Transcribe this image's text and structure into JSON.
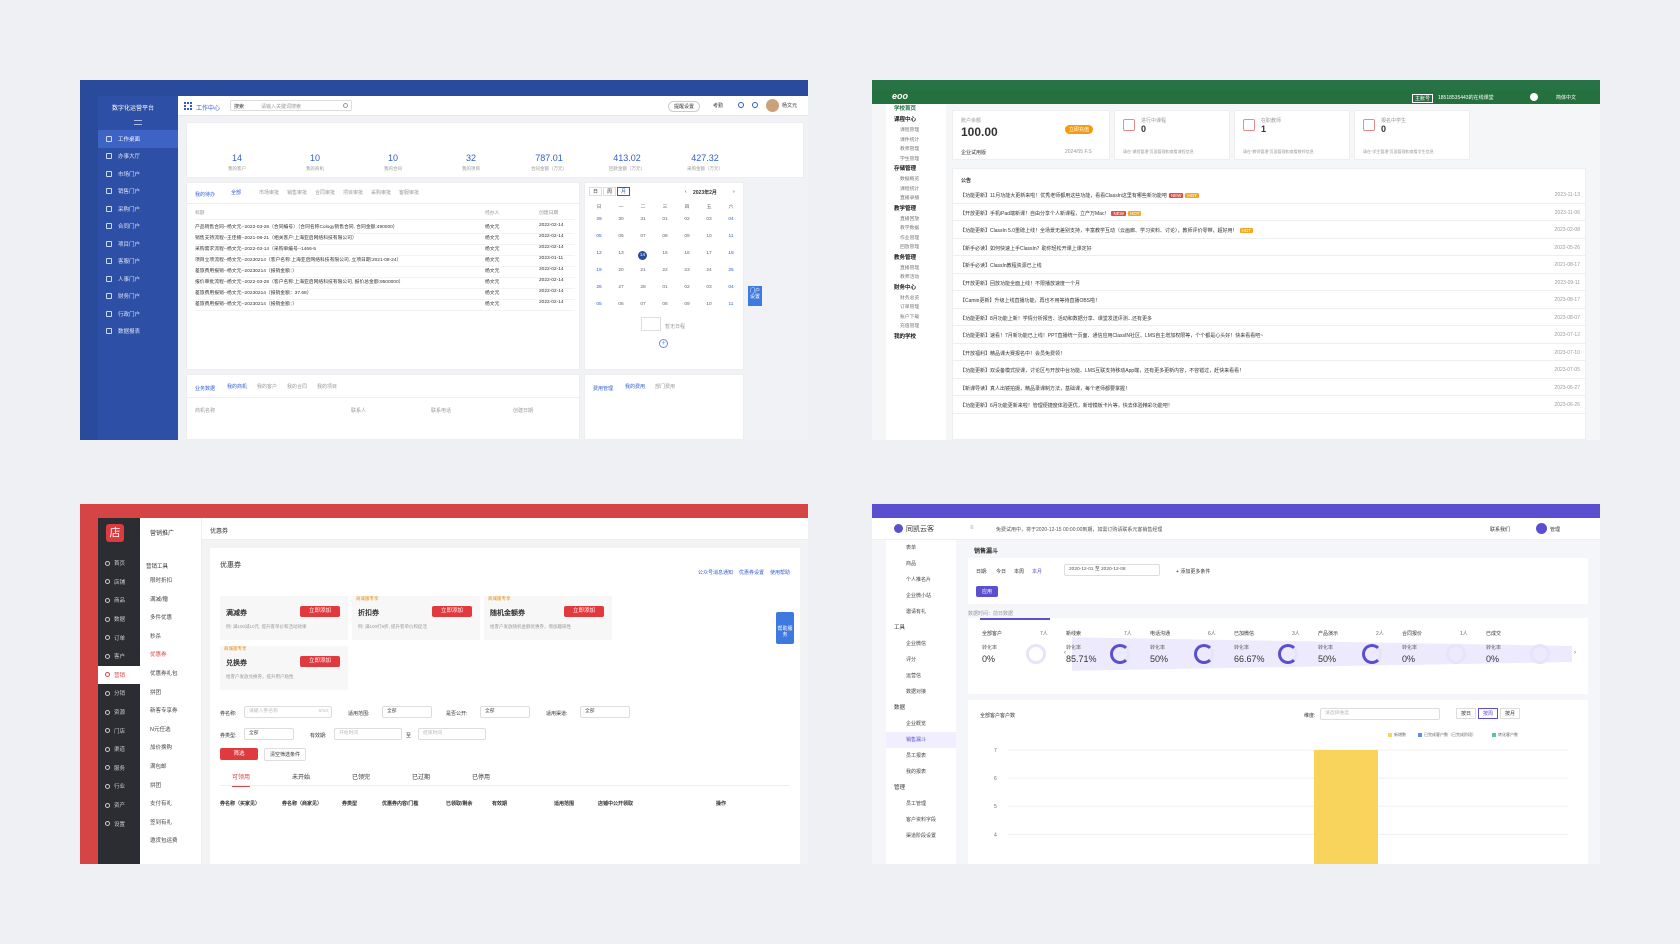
{
  "p1": {
    "brand": "数字化运营平台",
    "work_center": "工作中心",
    "search_scope": "搜索",
    "search_placeholder": "请输入关键词搜索",
    "alert": "提醒设置",
    "exam": "考勤",
    "user": "杨文元",
    "menu": [
      "工作桌面",
      "办事大厅",
      "市场门户",
      "销售门户",
      "采购门户",
      "合同门户",
      "项目门户",
      "客服门户",
      "人事门户",
      "财务门户",
      "行政门户",
      "数据报表"
    ],
    "stats": [
      {
        "v": "14",
        "l": "我的客户"
      },
      {
        "v": "10",
        "l": "我的商机"
      },
      {
        "v": "10",
        "l": "我的合同"
      },
      {
        "v": "32",
        "l": "我的项目"
      },
      {
        "v": "787.01",
        "l": "合同金额（万元）"
      },
      {
        "v": "413.02",
        "l": "回款金额（万元）"
      },
      {
        "v": "427.32",
        "l": "采购金额（万元）"
      }
    ],
    "todo_tab": "我的待办",
    "todo_filters": [
      "全部",
      "市场审批",
      "销售审批",
      "合同审批",
      "项目审批",
      "采购审批",
      "客服审批"
    ],
    "todo_cols": [
      "标题",
      "经办人",
      "创建日期"
    ],
    "todo_rows": [
      [
        "产品销售合同--杨文元--2022-03-28（合同编号）（合同名称Cology销售合同, 合同金额:490000）",
        "杨文元",
        "2022-02-14"
      ],
      [
        "销售支持流程--王佳楠--2021-08-21（相关客户:上海亚启网络科技有限公司）",
        "杨文元",
        "2022-02-14"
      ],
      [
        "采购需求流程--杨文元--2022-03-14（采购单编号--1466-5",
        "杨文元",
        "2022-02-14"
      ],
      [
        "项目立项流程--杨文元--20230214（客户名称:上海亚启网络科技有限公司, 立项日期:2021-08-24）",
        "杨文元",
        "2023-01-11"
      ],
      [
        "差旅费用报销--杨文元--20230214（报销金额：）",
        "杨文元",
        "2022-02-14"
      ],
      [
        "报价审批流程--杨文元--2022-03-28（客户名称:上海亚启网络科技有限公司, 报价总金额:9500000）",
        "杨文元",
        "2022-02-14"
      ],
      [
        "差旅费用报销--杨文元--20230214（报销金额：37.68）",
        "杨文元",
        "2022-02-14"
      ],
      [
        "差旅费用报销--杨文元--20230214（报销金额：）",
        "杨文元",
        "2022-02-14"
      ]
    ],
    "cal_modes": [
      "日",
      "周",
      "月"
    ],
    "cal_title": "2023年2月",
    "cal_week": [
      "日",
      "一",
      "二",
      "三",
      "四",
      "五",
      "六"
    ],
    "cal_days": [
      [
        "29",
        "30",
        "31",
        "01",
        "02",
        "03",
        "04"
      ],
      [
        "05",
        "06",
        "07",
        "08",
        "09",
        "10",
        "11"
      ],
      [
        "12",
        "13",
        "14",
        "15",
        "16",
        "17",
        "18"
      ],
      [
        "19",
        "20",
        "21",
        "22",
        "23",
        "24",
        "25"
      ],
      [
        "26",
        "27",
        "28",
        "01",
        "02",
        "03",
        "04"
      ],
      [
        "05",
        "06",
        "07",
        "08",
        "09",
        "10",
        "11"
      ]
    ],
    "cal_today": "14",
    "cal_empty": "暂无日程",
    "float_help": "门户设置",
    "biz_tab": "业务数据",
    "biz_filters": [
      "我的商机",
      "我的客户",
      "我的合同",
      "我的项目"
    ],
    "biz_cols": [
      "商机名称",
      "联系人",
      "联系电话",
      "创建日期"
    ],
    "fee_tab": "费用管理",
    "fee_filters": [
      "我的费用",
      "部门费用"
    ]
  },
  "p2": {
    "logo": "eoo",
    "hdr_badge": "主账号",
    "hdr_phone": "18518535443的在线课堂",
    "hdr_lang": "简体中文",
    "menu": [
      {
        "g": "学校首页",
        "s": []
      },
      {
        "g": "课程中心",
        "s": [
          "课程管理",
          "课件统计",
          "教师管理",
          "学生管理"
        ]
      },
      {
        "g": "存储管理",
        "s": [
          "数据概览",
          "课程统计",
          "直播录播"
        ]
      },
      {
        "g": "教学管理",
        "s": [
          "直播回放",
          "教学数据",
          "作业管理",
          "回放管理"
        ]
      },
      {
        "g": "教务管理",
        "s": [
          "直播管理",
          "教师活动"
        ]
      },
      {
        "g": "财务中心",
        "s": [
          "财务总览",
          "订单管理",
          "账户下载",
          "充值管理"
        ]
      },
      {
        "g": "我的学校",
        "s": []
      }
    ],
    "acct_label": "账户余额",
    "acct_value": "100.00",
    "acct_btn": "立即充值",
    "acct_type": "企业试用版",
    "acct_date": "2024/05 F.S",
    "cards": [
      {
        "l": "进行中课程",
        "v": "0",
        "d": "请在“课程管理”页面管理和查看课程信息"
      },
      {
        "l": "在职教师",
        "v": "1",
        "d": "请在“教师管理”页面管理和查看教师信息"
      },
      {
        "l": "报名中学生",
        "v": "0",
        "d": "请在“学生管理”页面管理和查看学生信息"
      }
    ],
    "notice_title": "公告",
    "notices": [
      {
        "t": "【功能更新】11月功能大更新来啦！优秀老师都用这些功能，看看ClassIn这里有哪些新功能吧",
        "b": [
          "NEW",
          "HOT"
        ],
        "d": "2023-11-13"
      },
      {
        "t": "【开放更新】手机iPad端新课！自由分享个人新课程，立产万Mac！",
        "b": [
          "NEW",
          "HOT"
        ],
        "d": "2023-11-06"
      },
      {
        "t": "【功能更新】ClassIn 5.0重磅上线！全场景无差别支持，丰富教学互动（云画廊、学习资料、讨论），教师评价零带，超好用！",
        "b": [
          "HOT"
        ],
        "d": "2023-02-08"
      },
      {
        "t": "【新手必读】如何快速上手ClassIn？助你轻松开课上课定好",
        "b": [],
        "d": "2022-05-26"
      },
      {
        "t": "【新手必读】ClassIn教程资源已上线",
        "b": [],
        "d": "2021-08-17"
      },
      {
        "t": "【开放更新】回放功能全面上线！不限播放速度一个月",
        "b": [],
        "d": "2023-09-11"
      },
      {
        "t": "【Camin更新】升级上线直播功能，再也不用等待直播OBS啦！",
        "b": [],
        "d": "2023-08-17"
      },
      {
        "t": "【功能更新】8月功能上新！学情分析报告、活动和数据分享、课堂发送评测...还有更多",
        "b": [],
        "d": "2023-08-07"
      },
      {
        "t": "【功能更新】速看！7月新功能已上线！PPT直播统一页面、通信应用ClassIN社区、LMS自主增加权限等，个个都是心头好！快来看看吧~",
        "b": [],
        "d": "2023-07-12"
      },
      {
        "t": "【开放福利】精品课大赛报名中！会员免费领！",
        "b": [],
        "d": "2023-07-10"
      },
      {
        "t": "【功能更新】双设备模式授课，讨论区与开放中台功能、LMS互联支持移动App端，还有更多更新内容，不容错过，赶快来看看！",
        "b": [],
        "d": "2023-07-05"
      },
      {
        "t": "【新课导读】真人出镜拍摄，精品录课制方法，基础课，每个老师都要掌握！",
        "b": [],
        "d": "2023-06-27"
      },
      {
        "t": "【功能更新】6月功能更新来啦！管理便捷度体验更优，新增模板卡片等，快去体验精彩功能吧！",
        "b": [],
        "d": "2023-06-26"
      }
    ]
  },
  "p3": {
    "logo": "店",
    "menu": [
      "首页",
      "店铺",
      "商品",
      "数据",
      "订单",
      "客户",
      "营销",
      "分销",
      "资源",
      "门店",
      "渠道",
      "服务",
      "行业",
      "资产",
      "设置"
    ],
    "active": "营销",
    "sub_title": "营销推广",
    "sub_group": "营销工具",
    "sub_items": [
      "限时折扣",
      "满减/赠",
      "多件优惠",
      "秒杀",
      "优惠券",
      "优惠券礼包",
      "拼团",
      "新客专享券",
      "N元任选",
      "加价换购",
      "满包邮",
      "拼团",
      "支付有礼",
      "签到有礼",
      "邀货包运费"
    ],
    "sub_active": "优惠券",
    "crumb": "优惠券",
    "title": "优惠券",
    "links": [
      "公众号消息通知",
      "优惠券设置",
      "使用帮助"
    ],
    "coupons": [
      {
        "name": "满减券",
        "desc": "例: 满100减10元, 提升客单价和活动效果",
        "tag": ""
      },
      {
        "name": "折扣券",
        "desc": "例: 满100打9折, 提升客单价和促活",
        "tag": "商城版专享"
      },
      {
        "name": "随机金额券",
        "desc": "给客户发放随机金额优惠券，增加趣味性",
        "tag": "商城版专享"
      },
      {
        "name": "兑换券",
        "desc": "给客户发放兑换券，提升用户粘性",
        "tag": "商城版专享"
      }
    ],
    "add_btn": "立即添加",
    "help": "帮助服务",
    "f_name": "券名称:",
    "f_name_ph": "请输入券名称",
    "f_name_cnt": "0/10",
    "f_scope": "适用范围:",
    "f_all": "全部",
    "f_public": "是否公开:",
    "f_channel": "适用渠道:",
    "f_type": "券类型:",
    "f_valid": "有效期:",
    "f_start": "开始时间",
    "f_to": "至",
    "f_end": "结束时间",
    "btn_filter": "筛选",
    "btn_clear": "清空筛选条件",
    "tabs": [
      "可领用",
      "未开始",
      "已领完",
      "已过期",
      "已停用"
    ],
    "cols": [
      "券名称（买家见）",
      "券名称（商家见）",
      "券类型",
      "优惠券内容/门槛",
      "已领取/剩余",
      "有效期",
      "适用范围",
      "店铺中公开领取",
      "操作"
    ]
  },
  "p4": {
    "logo": "同凯云客",
    "trial": "免费试用中，将于2020-12-15 00:00:00到期，如需订购请联系元客销售经理",
    "contact": "联系我们",
    "user": "管理",
    "menu": [
      {
        "t": "it",
        "v": "表单"
      },
      {
        "t": "it",
        "v": "商品"
      },
      {
        "t": "it",
        "v": "个人推名片"
      },
      {
        "t": "it",
        "v": "企业微小站"
      },
      {
        "t": "it",
        "v": "邀请有礼"
      },
      {
        "t": "grp",
        "v": "工具"
      },
      {
        "t": "it",
        "v": "企业微信"
      },
      {
        "t": "it",
        "v": "评分"
      },
      {
        "t": "it",
        "v": "运营信"
      },
      {
        "t": "it",
        "v": "数据对接"
      },
      {
        "t": "grp",
        "v": "数据"
      },
      {
        "t": "it",
        "v": "企业概览"
      },
      {
        "t": "it",
        "v": "销售漏斗",
        "active": true
      },
      {
        "t": "it",
        "v": "员工报表"
      },
      {
        "t": "it",
        "v": "我的报表"
      },
      {
        "t": "grp",
        "v": "管理"
      },
      {
        "t": "it",
        "v": "员工管理"
      },
      {
        "t": "it",
        "v": "客户资料字段"
      },
      {
        "t": "it",
        "v": "渠道阶段设置"
      }
    ],
    "page": "销售漏斗",
    "date_label": "日期:",
    "date_opts": [
      "今日",
      "本周",
      "本月"
    ],
    "date_active": "本月",
    "date_from": "2020-12-01",
    "date_to": "2020-12-08",
    "add_cond": "添加更多条件",
    "apply": "应用",
    "note": "数据时间：前日数据",
    "conv": "转化率",
    "funnel": [
      {
        "n": "全部客户",
        "c": "7人",
        "r": "0%"
      },
      {
        "n": "新线索",
        "c": "7人",
        "r": "85.71%"
      },
      {
        "n": "电话沟通",
        "c": "6人",
        "r": "50%"
      },
      {
        "n": "已加微信",
        "c": "3人",
        "r": "66.67%"
      },
      {
        "n": "产品演示",
        "c": "2人",
        "r": "50%"
      },
      {
        "n": "合同报价",
        "c": "1人",
        "r": "0%"
      },
      {
        "n": "已成交",
        "c": "",
        "r": "0%"
      }
    ],
    "chart_title": "全部客户客户数",
    "dim": "维度:",
    "dim_ph": "请选择维度",
    "gran": [
      "按日",
      "按周",
      "按月"
    ],
    "gran_active": "按周",
    "legend": [
      "新增数",
      "已完成客户数（已完成阶段）",
      "转化客户数"
    ],
    "chart_data": {
      "type": "bar",
      "categories": [
        ""
      ],
      "series": [
        {
          "name": "新增数",
          "values": [
            7
          ]
        }
      ],
      "ylim": [
        0,
        7
      ],
      "yticks": [
        "7",
        "6",
        "5",
        "4"
      ]
    }
  }
}
